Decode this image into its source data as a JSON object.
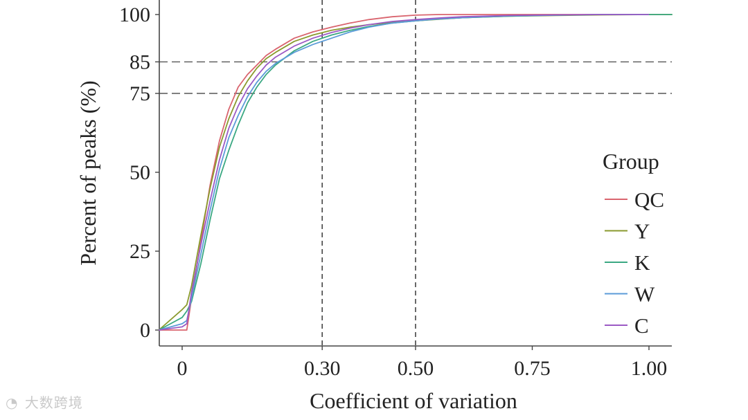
{
  "chart_data": {
    "type": "line",
    "title": "",
    "xlabel": "Coefficient of variation",
    "ylabel": "Percent of peaks (%)",
    "xlim": [
      -0.05,
      1.05
    ],
    "ylim": [
      -5,
      105
    ],
    "x_ticks": [
      {
        "value": 0,
        "label": "0"
      },
      {
        "value": 0.3,
        "label": "0.30"
      },
      {
        "value": 0.5,
        "label": "0.50"
      },
      {
        "value": 0.75,
        "label": "0.75"
      },
      {
        "value": 1.0,
        "label": "1.00"
      }
    ],
    "y_ticks": [
      {
        "value": 0,
        "label": "0"
      },
      {
        "value": 25,
        "label": "25"
      },
      {
        "value": 50,
        "label": "50"
      },
      {
        "value": 75,
        "label": "75"
      },
      {
        "value": 85,
        "label": "85"
      },
      {
        "value": 100,
        "label": "100"
      }
    ],
    "reference_lines": {
      "vertical": [
        0.3,
        0.5
      ],
      "horizontal": [
        75,
        85
      ]
    },
    "grid": false,
    "legend": {
      "title": "Group",
      "placement": "right"
    },
    "series": [
      {
        "name": "QC",
        "color": "#d9646e",
        "x": [
          -0.05,
          0.0,
          0.01,
          0.02,
          0.04,
          0.06,
          0.08,
          0.1,
          0.12,
          0.14,
          0.16,
          0.18,
          0.2,
          0.24,
          0.28,
          0.32,
          0.36,
          0.4,
          0.45,
          0.5,
          0.55,
          0.6,
          0.7,
          0.8,
          0.9,
          1.0
        ],
        "y": [
          0,
          0,
          0,
          10,
          28,
          46,
          60,
          70,
          77,
          81,
          84,
          87,
          89,
          92.5,
          94.5,
          96,
          97.3,
          98.4,
          99.3,
          99.8,
          100,
          100,
          100,
          100,
          100,
          100
        ]
      },
      {
        "name": "Y",
        "color": "#8a9a2e",
        "x": [
          -0.05,
          0.0,
          0.01,
          0.02,
          0.04,
          0.06,
          0.08,
          0.1,
          0.12,
          0.14,
          0.16,
          0.18,
          0.2,
          0.24,
          0.28,
          0.32,
          0.36,
          0.4,
          0.45,
          0.5,
          0.55,
          0.6,
          0.7,
          0.8,
          0.9,
          1.0,
          1.05
        ],
        "y": [
          0,
          6.5,
          8,
          14,
          30,
          45,
          58,
          67,
          74,
          79,
          83,
          86,
          88,
          91.5,
          93.5,
          95,
          96,
          96.8,
          97.5,
          98,
          98.5,
          99,
          99.5,
          99.7,
          99.9,
          100,
          100
        ]
      },
      {
        "name": "K",
        "color": "#3aa882",
        "x": [
          -0.05,
          0.0,
          0.01,
          0.02,
          0.04,
          0.06,
          0.08,
          0.1,
          0.12,
          0.14,
          0.16,
          0.18,
          0.2,
          0.24,
          0.28,
          0.32,
          0.36,
          0.4,
          0.45,
          0.5,
          0.55,
          0.6,
          0.7,
          0.8,
          0.9,
          1.0,
          1.05
        ],
        "y": [
          0,
          4,
          6,
          9,
          21,
          35,
          48,
          57,
          65,
          72,
          77,
          81,
          84,
          88.5,
          91.5,
          93.5,
          95,
          96.2,
          97.3,
          98,
          98.6,
          99,
          99.5,
          99.8,
          100,
          100,
          100
        ]
      },
      {
        "name": "W",
        "color": "#5b9bd8",
        "x": [
          -0.05,
          0.0,
          0.01,
          0.02,
          0.04,
          0.06,
          0.08,
          0.1,
          0.12,
          0.14,
          0.16,
          0.18,
          0.2,
          0.24,
          0.28,
          0.32,
          0.36,
          0.4,
          0.45,
          0.5,
          0.55,
          0.6,
          0.7,
          0.8,
          0.9,
          1.0
        ],
        "y": [
          0,
          2,
          3,
          10,
          24,
          38,
          51,
          61,
          68,
          74,
          78.5,
          82,
          84.5,
          88,
          90.5,
          92.5,
          94.5,
          96,
          97.3,
          98,
          98.6,
          99,
          99.6,
          99.8,
          100,
          100
        ]
      },
      {
        "name": "C",
        "color": "#9b59c4",
        "x": [
          -0.05,
          0.0,
          0.01,
          0.02,
          0.04,
          0.06,
          0.08,
          0.1,
          0.12,
          0.14,
          0.16,
          0.18,
          0.2,
          0.24,
          0.28,
          0.32,
          0.36,
          0.4,
          0.45,
          0.5,
          0.55,
          0.6,
          0.7,
          0.8,
          0.9,
          1.0
        ],
        "y": [
          0,
          1,
          2,
          12,
          27,
          41,
          54,
          64,
          71,
          76.5,
          80.5,
          84,
          86.5,
          90,
          92.5,
          94.3,
          95.7,
          96.8,
          97.8,
          98.4,
          98.9,
          99.3,
          99.7,
          99.9,
          100,
          100
        ]
      }
    ]
  },
  "watermark": {
    "icon": "◔",
    "text": "大数跨境"
  }
}
